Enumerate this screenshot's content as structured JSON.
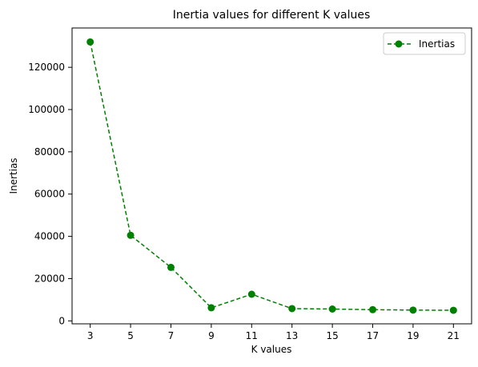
{
  "chart_data": {
    "type": "line",
    "title": "Inertia values for different K values",
    "xlabel": "K values",
    "ylabel": "Inertias",
    "x": [
      3,
      5,
      7,
      9,
      11,
      13,
      15,
      17,
      19,
      21
    ],
    "series": [
      {
        "name": "Inertias",
        "values": [
          132000,
          40500,
          25300,
          6200,
          12600,
          5800,
          5600,
          5300,
          5100,
          5000
        ],
        "color": "#008000",
        "line_style": "dashed",
        "marker": "circle"
      }
    ],
    "x_ticks": [
      "3",
      "5",
      "7",
      "9",
      "11",
      "13",
      "15",
      "17",
      "19",
      "21"
    ],
    "y_ticks": [
      "0",
      "20000",
      "40000",
      "60000",
      "80000",
      "100000",
      "120000"
    ],
    "xlim": [
      2.1,
      21.9
    ],
    "ylim": [
      -1400,
      138600
    ],
    "legend_position": "top-right",
    "grid": false
  }
}
